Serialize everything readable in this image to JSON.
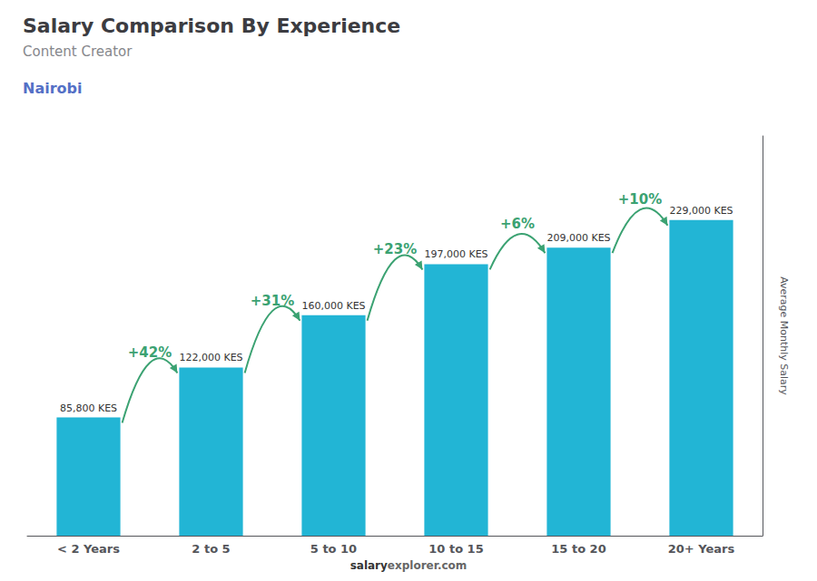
{
  "chart_data": {
    "type": "bar",
    "title": "Salary Comparison By Experience",
    "subtitle": "Content Creator",
    "location": "Nairobi",
    "ylabel": "Average Monthly Salary",
    "footer": [
      "salary",
      "explorer.com"
    ],
    "categories": [
      "< 2 Years",
      "2 to 5",
      "5 to 10",
      "10 to 15",
      "15 to 20",
      "20+ Years"
    ],
    "values": [
      85800,
      122000,
      160000,
      197000,
      209000,
      229000
    ],
    "value_labels": [
      "85,800 KES",
      "122,000 KES",
      "160,000 KES",
      "197,000 KES",
      "209,000 KES",
      "229,000 KES"
    ],
    "data_labels": true,
    "annotations": [
      "+42%",
      "+31%",
      "+23%",
      "+6%",
      "+10%"
    ],
    "color": "#22B5D5",
    "ylim": [
      0,
      290000
    ],
    "tick_labels": "x",
    "grid": false
  }
}
